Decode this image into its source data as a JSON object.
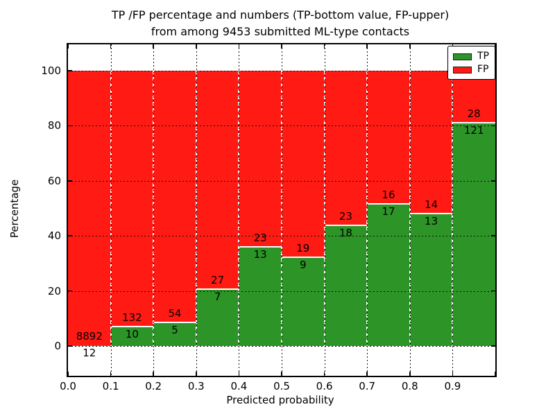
{
  "figure": {
    "title_line1": "TP /FP percentage and numbers (TP-bottom value, FP-upper)",
    "title_line2": "from among 9453 submitted ML-type contacts"
  },
  "chart_data": {
    "type": "bar",
    "stacked": true,
    "title": "TP /FP percentage and numbers (TP-bottom value, FP-upper) from among 9453 submitted ML-type contacts",
    "xlabel": "Predicted probability",
    "ylabel": "Percentage",
    "xlim": [
      0.0,
      1.0
    ],
    "ylim": [
      -10.8,
      109.6
    ],
    "grid": true,
    "legend_position": "upper right",
    "x_tick_labels": [
      "0.0",
      "0.1",
      "0.2",
      "0.3",
      "0.4",
      "0.5",
      "0.6",
      "0.7",
      "0.8",
      "0.9"
    ],
    "y_tick_values": [
      0,
      20,
      40,
      60,
      80,
      100
    ],
    "y_tick_labels": [
      "0",
      "20",
      "40",
      "60",
      "80",
      "100"
    ],
    "total_contacts": 9453,
    "categories": [
      "0.0-0.1",
      "0.1-0.2",
      "0.2-0.3",
      "0.3-0.4",
      "0.4-0.5",
      "0.5-0.6",
      "0.6-0.7",
      "0.7-0.8",
      "0.8-0.9",
      "0.9-1.0"
    ],
    "series": [
      {
        "name": "TP",
        "color": "#2d9428",
        "counts": [
          12,
          10,
          5,
          7,
          13,
          9,
          18,
          17,
          13,
          121
        ]
      },
      {
        "name": "FP",
        "color": "#ff1a14",
        "counts": [
          8892,
          132,
          54,
          27,
          23,
          19,
          23,
          16,
          14,
          28
        ]
      }
    ],
    "tp_percent": [
      0.13,
      7.04,
      8.47,
      20.59,
      36.11,
      32.14,
      43.9,
      51.52,
      48.15,
      81.21
    ],
    "legend": {
      "entries": [
        {
          "label": "TP",
          "color": "#2d9428"
        },
        {
          "label": "FP",
          "color": "#ff1a14"
        }
      ]
    }
  }
}
